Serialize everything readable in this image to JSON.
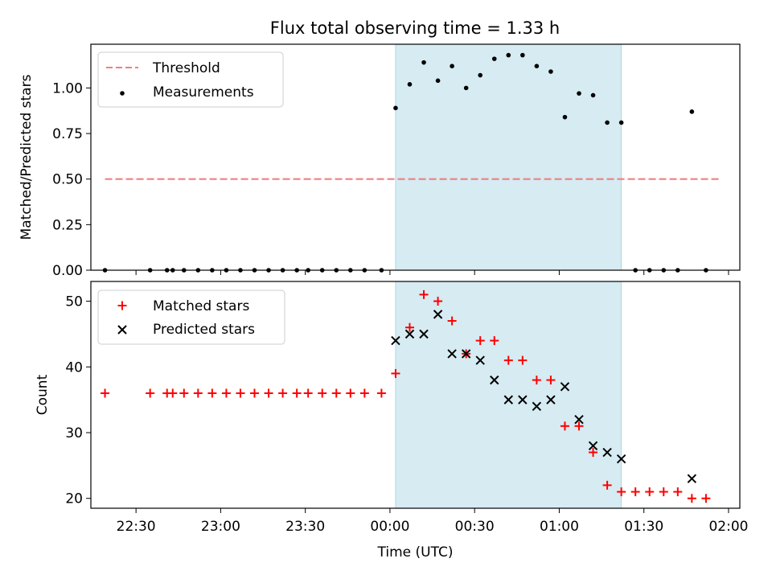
{
  "title": "Flux total observing time = 1.33 h",
  "xlabel": "Time (UTC)",
  "colors": {
    "threshold": "#f08080",
    "measurements": "#000000",
    "matched": "#ff0000",
    "predicted": "#000000",
    "span": "#add8e6"
  },
  "chart_data": [
    {
      "type": "scatter",
      "ylabel": "Matched/Predicted stars",
      "ylim": [
        0,
        1.24
      ],
      "yticks": [
        "0.00",
        "0.25",
        "0.50",
        "0.75",
        "1.00"
      ],
      "ytick_values": [
        0,
        0.25,
        0.5,
        0.75,
        1.0
      ],
      "legend_position": "upper-left",
      "shaded_span": {
        "start": "00:02",
        "end": "01:22"
      },
      "series": [
        {
          "name": "Threshold",
          "style": "dashed-line",
          "x": [
            "22:19",
            "01:57"
          ],
          "y": [
            0.5,
            0.5
          ]
        },
        {
          "name": "Measurements",
          "style": "dot",
          "x": [
            "22:19",
            "22:35",
            "22:41",
            "22:43",
            "22:47",
            "22:52",
            "22:57",
            "23:02",
            "23:07",
            "23:12",
            "23:17",
            "23:22",
            "23:27",
            "23:31",
            "23:36",
            "23:41",
            "23:46",
            "23:51",
            "23:57",
            "00:02",
            "00:07",
            "00:12",
            "00:17",
            "00:22",
            "00:27",
            "00:32",
            "00:37",
            "00:42",
            "00:47",
            "00:52",
            "00:57",
            "01:02",
            "01:07",
            "01:12",
            "01:17",
            "01:22",
            "01:27",
            "01:32",
            "01:37",
            "01:42",
            "01:47",
            "01:52"
          ],
          "y": [
            0,
            0,
            0,
            0,
            0,
            0,
            0,
            0,
            0,
            0,
            0,
            0,
            0,
            0,
            0,
            0,
            0,
            0,
            0,
            0.89,
            1.02,
            1.14,
            1.04,
            1.12,
            1.0,
            1.07,
            1.16,
            1.18,
            1.18,
            1.12,
            1.09,
            0.84,
            0.97,
            0.96,
            0.81,
            0.81,
            0,
            0,
            0,
            0,
            0.87,
            0
          ]
        }
      ]
    },
    {
      "type": "scatter",
      "ylabel": "Count",
      "ylim": [
        18.5,
        53
      ],
      "yticks": [
        "20",
        "30",
        "40",
        "50"
      ],
      "ytick_values": [
        20,
        30,
        40,
        50
      ],
      "xticks": [
        "22:30",
        "23:00",
        "23:30",
        "00:00",
        "00:30",
        "01:00",
        "01:30",
        "02:00"
      ],
      "xlim": [
        "22:14",
        "02:04"
      ],
      "legend_position": "upper-left",
      "shaded_span": {
        "start": "00:02",
        "end": "01:22"
      },
      "series": [
        {
          "name": "Matched stars",
          "style": "plus",
          "x": [
            "22:19",
            "22:35",
            "22:41",
            "22:43",
            "22:47",
            "22:52",
            "22:57",
            "23:02",
            "23:07",
            "23:12",
            "23:17",
            "23:22",
            "23:27",
            "23:31",
            "23:36",
            "23:41",
            "23:46",
            "23:51",
            "23:57",
            "00:02",
            "00:07",
            "00:12",
            "00:17",
            "00:22",
            "00:27",
            "00:32",
            "00:37",
            "00:42",
            "00:47",
            "00:52",
            "00:57",
            "01:02",
            "01:07",
            "01:12",
            "01:17",
            "01:22",
            "01:27",
            "01:32",
            "01:37",
            "01:42",
            "01:47",
            "01:52"
          ],
          "y": [
            36,
            36,
            36,
            36,
            36,
            36,
            36,
            36,
            36,
            36,
            36,
            36,
            36,
            36,
            36,
            36,
            36,
            36,
            36,
            39,
            46,
            51,
            50,
            47,
            42,
            44,
            44,
            41,
            41,
            38,
            38,
            31,
            31,
            27,
            22,
            21,
            21,
            21,
            21,
            21,
            20,
            20
          ]
        },
        {
          "name": "Predicted stars",
          "style": "x",
          "x": [
            "00:02",
            "00:07",
            "00:12",
            "00:17",
            "00:22",
            "00:27",
            "00:32",
            "00:37",
            "00:42",
            "00:47",
            "00:52",
            "00:57",
            "01:02",
            "01:07",
            "01:12",
            "01:17",
            "01:22",
            "01:47"
          ],
          "y": [
            44,
            45,
            45,
            48,
            42,
            42,
            41,
            38,
            35,
            35,
            34,
            35,
            37,
            32,
            28,
            27,
            26,
            23
          ]
        }
      ]
    }
  ]
}
